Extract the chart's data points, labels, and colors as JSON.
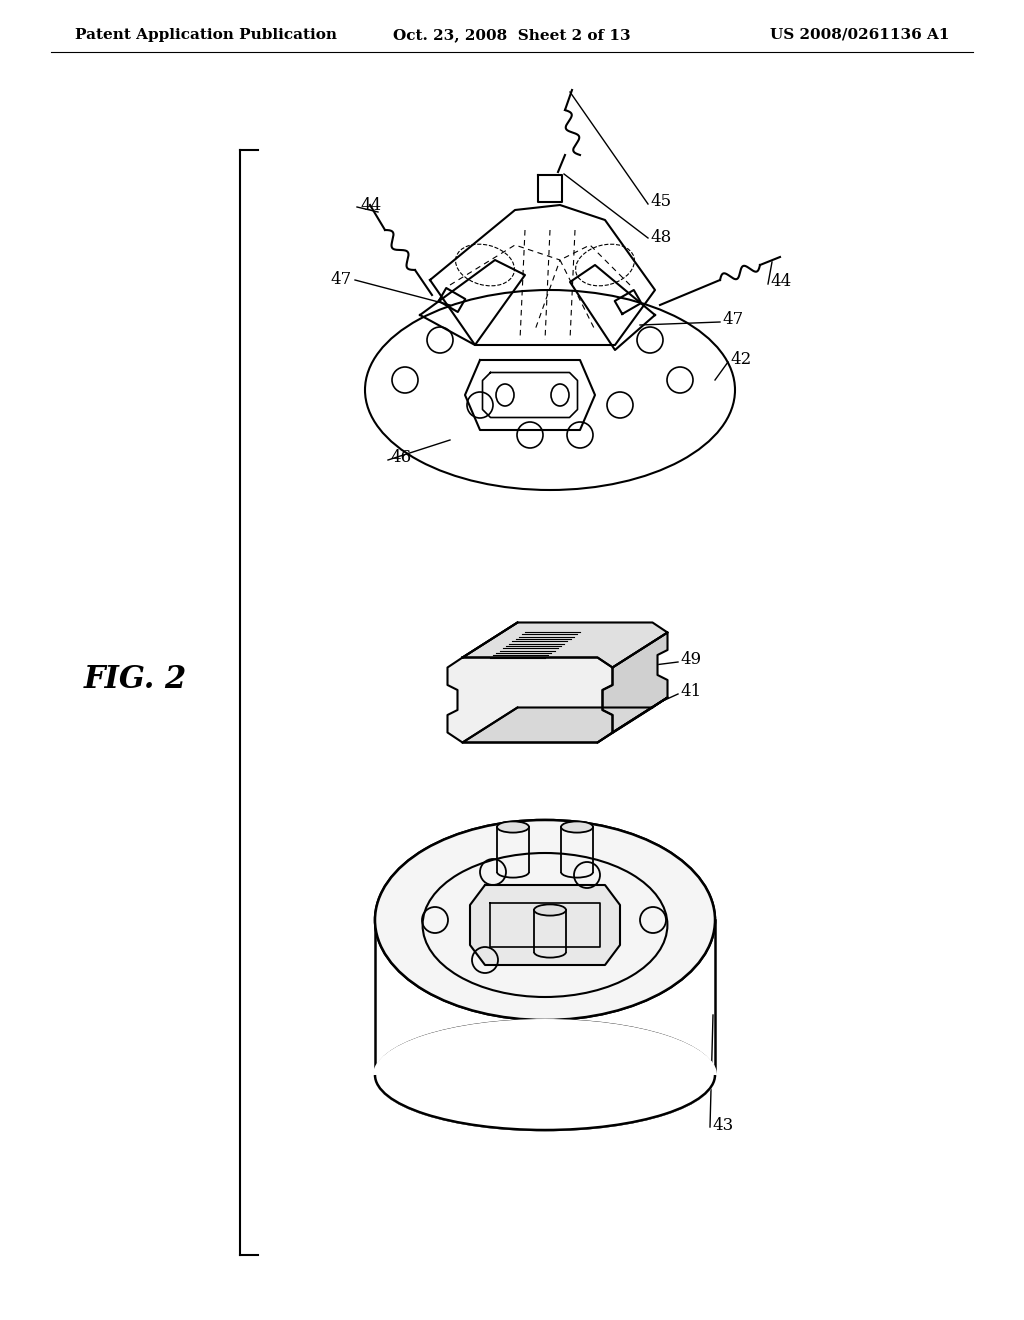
{
  "background_color": "#ffffff",
  "header_left": "Patent Application Publication",
  "header_center": "Oct. 23, 2008  Sheet 2 of 13",
  "header_right": "US 2008/0261136 A1",
  "fig_label": "FIG. 2",
  "header_fontsize": 11,
  "fig_label_fontsize": 22,
  "label_fontsize": 12,
  "line_color": "#000000"
}
